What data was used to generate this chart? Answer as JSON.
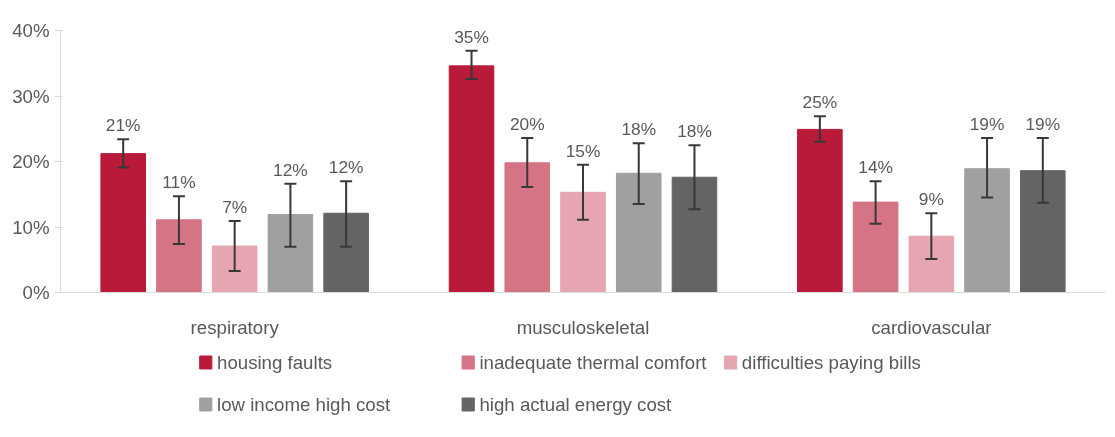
{
  "chart_data": {
    "type": "bar",
    "categories": [
      "respiratory",
      "musculoskeletal",
      "cardiovascular"
    ],
    "series": [
      {
        "name": "housing faults",
        "color": "#ba1a3a",
        "values": [
          21.2,
          34.6,
          24.9
        ],
        "errors": [
          [
            19.1,
            23.4
          ],
          [
            32.6,
            36.9
          ],
          [
            23.0,
            26.9
          ]
        ],
        "value_labels": [
          "21%",
          "35%",
          "25%"
        ]
      },
      {
        "name": "inadequate thermal comfort",
        "color": "#d57485",
        "values": [
          11.1,
          19.8,
          13.8
        ],
        "errors": [
          [
            7.4,
            14.7
          ],
          [
            16.1,
            23.6
          ],
          [
            10.5,
            17.0
          ]
        ],
        "value_labels": [
          "11%",
          "20%",
          "14%"
        ]
      },
      {
        "name": "difficulties paying bills",
        "color": "#e5a6b2",
        "values": [
          7.1,
          15.3,
          8.6
        ],
        "errors": [
          [
            3.3,
            10.9
          ],
          [
            11.1,
            19.5
          ],
          [
            5.1,
            12.1
          ]
        ],
        "value_labels": [
          "7%",
          "15%",
          "9%"
        ]
      },
      {
        "name": "low income high cost",
        "color": "#a0a0a0",
        "values": [
          11.9,
          18.2,
          18.9
        ],
        "errors": [
          [
            7.0,
            16.6
          ],
          [
            13.5,
            22.8
          ],
          [
            14.5,
            23.6
          ]
        ],
        "value_labels": [
          "12%",
          "18%",
          "19%"
        ]
      },
      {
        "name": "high actual energy cost",
        "color": "#646464",
        "values": [
          12.1,
          17.6,
          18.6
        ],
        "errors": [
          [
            7.0,
            17.0
          ],
          [
            12.7,
            22.5
          ],
          [
            13.7,
            23.6
          ]
        ],
        "value_labels": [
          "12%",
          "18%",
          "19%"
        ]
      }
    ],
    "ylim": [
      0,
      40
    ],
    "yticks": [
      {
        "value": 0,
        "label": "0%"
      },
      {
        "value": 10,
        "label": "10%"
      },
      {
        "value": 20,
        "label": "20%"
      },
      {
        "value": 30,
        "label": "30%"
      },
      {
        "value": 40,
        "label": "40%"
      }
    ],
    "grid": false,
    "legend": "bottom"
  }
}
